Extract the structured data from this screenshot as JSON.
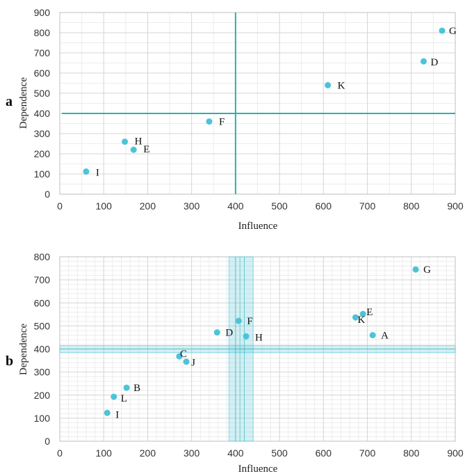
{
  "chart_data": [
    {
      "panel": "a",
      "type": "scatter",
      "title": "",
      "xlabel": "Influence",
      "ylabel": "Dependence",
      "xlim": [
        0,
        900
      ],
      "ylim": [
        0,
        900
      ],
      "xticks": [
        0,
        100,
        200,
        300,
        400,
        500,
        600,
        700,
        800,
        900
      ],
      "yticks": [
        0,
        100,
        200,
        300,
        400,
        500,
        600,
        700,
        800,
        900
      ],
      "grid": true,
      "minor_grid": false,
      "threshold_x": 400,
      "threshold_y": 400,
      "points": [
        {
          "label": "G",
          "x": 870,
          "y": 810
        },
        {
          "label": "D",
          "x": 828,
          "y": 658
        },
        {
          "label": "K",
          "x": 610,
          "y": 540
        },
        {
          "label": "F",
          "x": 340,
          "y": 360
        },
        {
          "label": "H",
          "x": 148,
          "y": 260
        },
        {
          "label": "E",
          "x": 168,
          "y": 220
        },
        {
          "label": "I",
          "x": 60,
          "y": 112
        }
      ]
    },
    {
      "panel": "b",
      "type": "scatter",
      "title": "",
      "xlabel": "Influence",
      "ylabel": "Dependence",
      "xlim": [
        0,
        900
      ],
      "ylim": [
        0,
        800
      ],
      "xticks": [
        0,
        100,
        200,
        300,
        400,
        500,
        600,
        700,
        800,
        900
      ],
      "yticks": [
        0,
        100,
        200,
        300,
        400,
        500,
        600,
        700,
        800
      ],
      "grid": true,
      "minor_grid": true,
      "threshold_x_band": [
        385,
        440
      ],
      "threshold_x_lines": [
        400,
        410,
        420
      ],
      "threshold_y_band": [
        385,
        415
      ],
      "threshold_y": 400,
      "points": [
        {
          "label": "G",
          "x": 810,
          "y": 745
        },
        {
          "label": "E",
          "x": 690,
          "y": 552
        },
        {
          "label": "K",
          "x": 673,
          "y": 537
        },
        {
          "label": "A",
          "x": 712,
          "y": 460
        },
        {
          "label": "F",
          "x": 407,
          "y": 522
        },
        {
          "label": "D",
          "x": 358,
          "y": 472
        },
        {
          "label": "H",
          "x": 424,
          "y": 455
        },
        {
          "label": "C",
          "x": 272,
          "y": 368
        },
        {
          "label": "J",
          "x": 288,
          "y": 345
        },
        {
          "label": "B",
          "x": 152,
          "y": 232
        },
        {
          "label": "L",
          "x": 123,
          "y": 193
        },
        {
          "label": "I",
          "x": 108,
          "y": 123
        }
      ]
    }
  ],
  "colors": {
    "marker": "#4cc4d8",
    "threshold_line": "#2bb0b0",
    "band_fill": "#4cc4d8",
    "grid_major": "#d4d4d4",
    "grid_minor": "#ececec",
    "axis": "#bfbfbf"
  }
}
